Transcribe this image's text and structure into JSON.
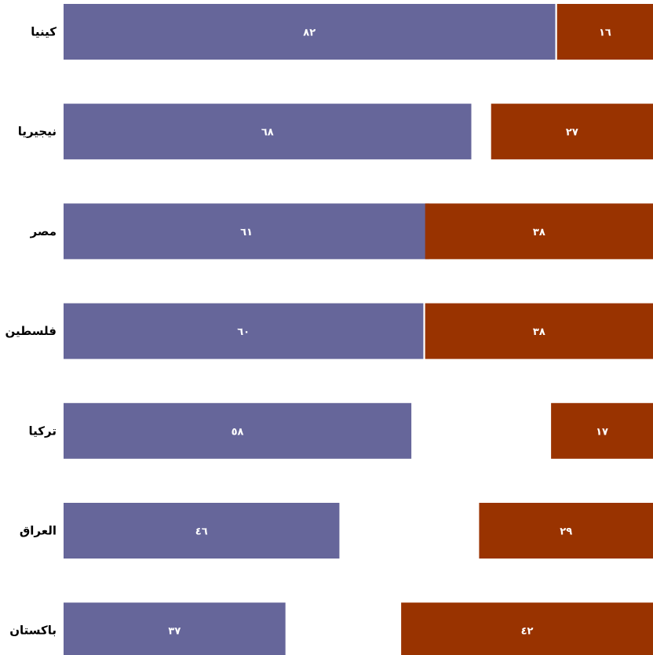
{
  "chart_data": {
    "type": "bar",
    "orientation": "horizontal",
    "stacked": false,
    "categories": [
      "كينيا",
      "نيجيريا",
      "مصر",
      "فلسطين",
      "تركيا",
      "العراق",
      "باكستان"
    ],
    "series": [
      {
        "color": "#66669a",
        "values": [
          82,
          68,
          61,
          60,
          58,
          46,
          37
        ],
        "labels": [
          "٨٢",
          "٦٨",
          "٦١",
          "٦٠",
          "٥٨",
          "٤٦",
          "٣٧"
        ]
      },
      {
        "color": "#993300",
        "values": [
          16,
          27,
          38,
          38,
          17,
          29,
          42
        ],
        "labels": [
          "١٦",
          "٢٧",
          "٣٨",
          "٣٨",
          "١٧",
          "٢٩",
          "٤٢"
        ]
      }
    ],
    "xlim": [
      0,
      100
    ],
    "grid": false,
    "legend": "none",
    "title": "",
    "xlabel": "",
    "ylabel": ""
  }
}
